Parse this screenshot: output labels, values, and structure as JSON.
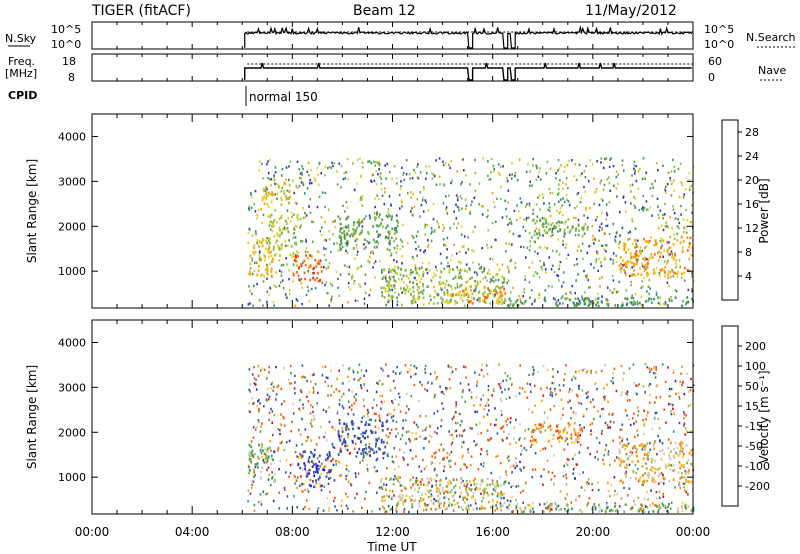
{
  "header": {
    "radar": "TIGER (fitACF)",
    "beam": "Beam 12",
    "date": "11/May/2012"
  },
  "params": {
    "nsky_label": "N.Sky",
    "nsky_ticks": [
      "10^5",
      "10^0"
    ],
    "nsearch_label": "N.Search",
    "nsearch_ticks": [
      "10^5",
      "10^0"
    ],
    "freq_label": "Freq.",
    "freq_unit": "[MHz]",
    "freq_ticks": [
      "18",
      "8"
    ],
    "nave_label": "Nave",
    "nave_ticks": [
      "60",
      "0"
    ],
    "cpid_label": "CPID",
    "cpid_value": "normal 150"
  },
  "chart_data": [
    {
      "type": "heatmap",
      "name": "power",
      "ylabel": "Slant Range [km]",
      "xlabel": "",
      "y_ticks": [
        "1000",
        "2000",
        "3000",
        "4000"
      ],
      "y_tick_values": [
        1000,
        2000,
        3000,
        4000
      ],
      "ylim": [
        180,
        4500
      ],
      "xlim_hours": [
        0,
        24
      ],
      "colorbar": {
        "label": "Power [dB]",
        "ticks": [
          "4",
          "8",
          "12",
          "16",
          "20",
          "24",
          "28"
        ],
        "tick_values": [
          4,
          8,
          12,
          16,
          20,
          24,
          28
        ],
        "range": [
          0,
          30
        ],
        "colors": [
          "#0000ff",
          "#3030c8",
          "#2f8f5a",
          "#5aa050",
          "#88c040",
          "#ddd020",
          "#ffa000",
          "#ff6000",
          "#ff2000"
        ]
      },
      "regions": [
        {
          "t0": 6.2,
          "t1": 7.2,
          "r0": 900,
          "r1": 1800,
          "v": 22
        },
        {
          "t0": 7.0,
          "t1": 8.2,
          "r0": 1300,
          "r1": 2300,
          "v": 18
        },
        {
          "t0": 8.0,
          "t1": 9.2,
          "r0": 800,
          "r1": 1400,
          "v": 28
        },
        {
          "t0": 6.8,
          "t1": 8.0,
          "r0": 2500,
          "r1": 3100,
          "v": 20
        },
        {
          "t0": 9.8,
          "t1": 12.2,
          "r0": 1500,
          "r1": 2300,
          "v": 12
        },
        {
          "t0": 11.5,
          "t1": 16.5,
          "r0": 300,
          "r1": 1100,
          "v": 16
        },
        {
          "t0": 14.0,
          "t1": 16.5,
          "r0": 300,
          "r1": 700,
          "v": 24
        },
        {
          "t0": 17.5,
          "t1": 19.8,
          "r0": 1800,
          "r1": 2200,
          "v": 14
        },
        {
          "t0": 21.0,
          "t1": 24.0,
          "r0": 900,
          "r1": 1800,
          "v": 24
        },
        {
          "t0": 16.5,
          "t1": 24.0,
          "r0": 250,
          "r1": 450,
          "v": 10
        }
      ]
    },
    {
      "type": "heatmap",
      "name": "velocity",
      "ylabel": "Slant Range [km]",
      "xlabel": "Time UT",
      "x_ticks": [
        "00:00",
        "04:00",
        "08:00",
        "12:00",
        "16:00",
        "20:00",
        "00:00"
      ],
      "x_tick_values_hours": [
        0,
        4,
        8,
        12,
        16,
        20,
        24
      ],
      "y_ticks": [
        "1000",
        "2000",
        "3000",
        "4000"
      ],
      "y_tick_values": [
        1000,
        2000,
        3000,
        4000
      ],
      "ylim": [
        180,
        4500
      ],
      "xlim_hours": [
        0,
        24
      ],
      "colorbar": {
        "label": "Velocity [m s⁻¹]",
        "ticks": [
          "-200",
          "-100",
          "-50",
          "-15",
          "15",
          "50",
          "100",
          "200"
        ],
        "tick_values": [
          -200,
          -100,
          -50,
          -15,
          15,
          50,
          100,
          200
        ],
        "colors": [
          "#ff0000",
          "#ff5000",
          "#ff9000",
          "#ffc040",
          "#c8c8c8",
          "#80c040",
          "#3a9a50",
          "#3050b0",
          "#2020d0"
        ]
      },
      "regions": [
        {
          "t0": 6.2,
          "t1": 7.3,
          "r0": 900,
          "r1": 1800,
          "v": 40
        },
        {
          "t0": 8.2,
          "t1": 9.5,
          "r0": 800,
          "r1": 1600,
          "v": 200
        },
        {
          "t0": 9.8,
          "t1": 11.8,
          "r0": 1500,
          "r1": 2300,
          "v": 150
        },
        {
          "t0": 11.5,
          "t1": 16.5,
          "r0": 300,
          "r1": 1000,
          "v": 0
        },
        {
          "t0": 17.5,
          "t1": 19.8,
          "r0": 1800,
          "r1": 2200,
          "v": -80
        },
        {
          "t0": 21.0,
          "t1": 24.0,
          "r0": 900,
          "r1": 1800,
          "v": -30
        },
        {
          "t0": 16.5,
          "t1": 24.0,
          "r0": 250,
          "r1": 450,
          "v": 30
        }
      ]
    }
  ]
}
